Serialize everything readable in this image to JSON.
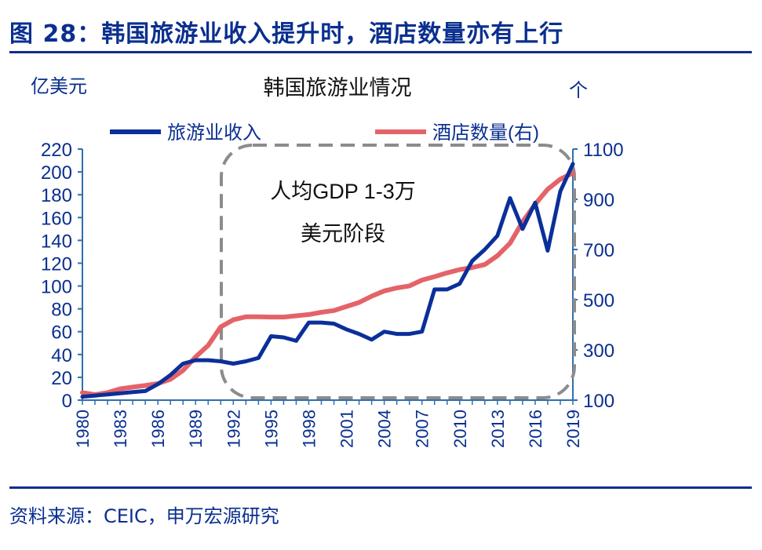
{
  "figure": {
    "title": "图 28：韩国旅游业收入提升时，酒店数量亦有上行",
    "source": "资料来源：CEIC，申万宏源研究"
  },
  "colors": {
    "primary": "#0a2f8f",
    "revenue": "#0b2f9a",
    "hotels": "#e46368",
    "box": "#8c8c8c",
    "axis": "#2f6fae"
  },
  "chart_data": {
    "type": "line",
    "title": "韩国旅游业情况",
    "y_left_unit": "亿美元",
    "y_right_unit": "个",
    "y_left_lim": [
      0,
      220
    ],
    "y_right_lim": [
      100,
      1100
    ],
    "y_left_ticks": [
      0,
      20,
      40,
      60,
      80,
      100,
      120,
      140,
      160,
      180,
      200,
      220
    ],
    "y_right_ticks": [
      100,
      300,
      500,
      700,
      900,
      1100
    ],
    "x_ticks": [
      1980,
      1983,
      1986,
      1989,
      1992,
      1995,
      1998,
      2001,
      2004,
      2007,
      2010,
      2013,
      2016,
      2019
    ],
    "legend_position": "top",
    "annotation": "人均GDP 1-3万 美元阶段",
    "x": [
      1980,
      1981,
      1982,
      1983,
      1984,
      1985,
      1986,
      1987,
      1988,
      1989,
      1990,
      1991,
      1992,
      1993,
      1994,
      1995,
      1996,
      1997,
      1998,
      1999,
      2000,
      2001,
      2002,
      2003,
      2004,
      2005,
      2006,
      2007,
      2008,
      2009,
      2010,
      2011,
      2012,
      2013,
      2014,
      2015,
      2016,
      2017,
      2018,
      2019
    ],
    "series": [
      {
        "name": "旅游业收入",
        "axis": "left",
        "values": [
          3,
          4,
          5,
          6,
          7,
          8,
          14,
          22,
          32,
          35,
          35,
          34,
          32,
          34,
          37,
          56,
          55,
          52,
          68,
          68,
          67,
          62,
          58,
          53,
          60,
          58,
          58,
          60,
          97,
          97,
          102,
          122,
          132,
          144,
          177,
          150,
          173,
          131,
          183,
          207
        ]
      },
      {
        "name": "酒店数量(右)",
        "axis": "right",
        "values": [
          130,
          122,
          130,
          145,
          152,
          158,
          166,
          183,
          218,
          272,
          318,
          392,
          420,
          432,
          432,
          431,
          431,
          436,
          441,
          450,
          457,
          473,
          489,
          514,
          535,
          547,
          555,
          578,
          592,
          607,
          620,
          628,
          640,
          675,
          725,
          810,
          880,
          940,
          980,
          1005
        ]
      }
    ]
  }
}
